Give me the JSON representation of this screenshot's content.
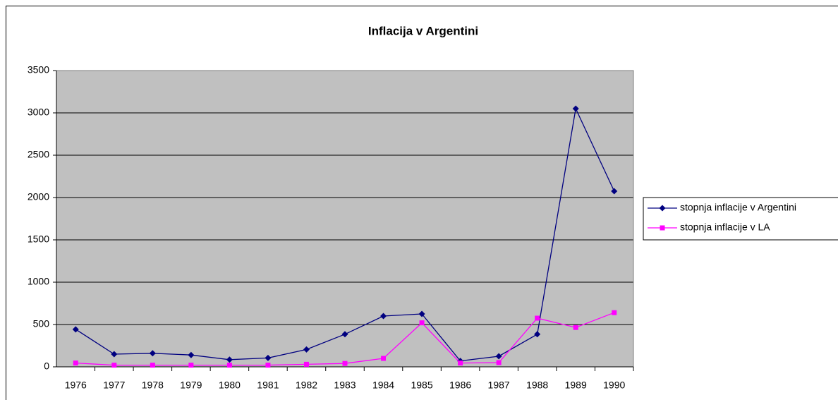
{
  "chart_data": {
    "type": "line",
    "title": "Inflacija v Argentini",
    "categories": [
      "1976",
      "1977",
      "1978",
      "1979",
      "1980",
      "1981",
      "1982",
      "1983",
      "1984",
      "1985",
      "1986",
      "1987",
      "1988",
      "1989",
      "1990"
    ],
    "series": [
      {
        "name": "stopnja inflacije v Argentini",
        "color": "#000080",
        "marker": "diamond",
        "values": [
          443,
          150,
          160,
          140,
          85,
          105,
          205,
          385,
          600,
          625,
          70,
          125,
          385,
          3050,
          2075
        ]
      },
      {
        "name": "stopnja inflacije v LA",
        "color": "#ff00ff",
        "marker": "square",
        "values": [
          45,
          20,
          20,
          20,
          20,
          20,
          30,
          40,
          100,
          520,
          45,
          50,
          575,
          465,
          640
        ]
      }
    ],
    "ylim": [
      0,
      3500
    ],
    "yticks": [
      0,
      500,
      1000,
      1500,
      2000,
      2500,
      3000,
      3500
    ],
    "grid": true,
    "legend": "right",
    "plot_background": "#c0c0c0"
  }
}
